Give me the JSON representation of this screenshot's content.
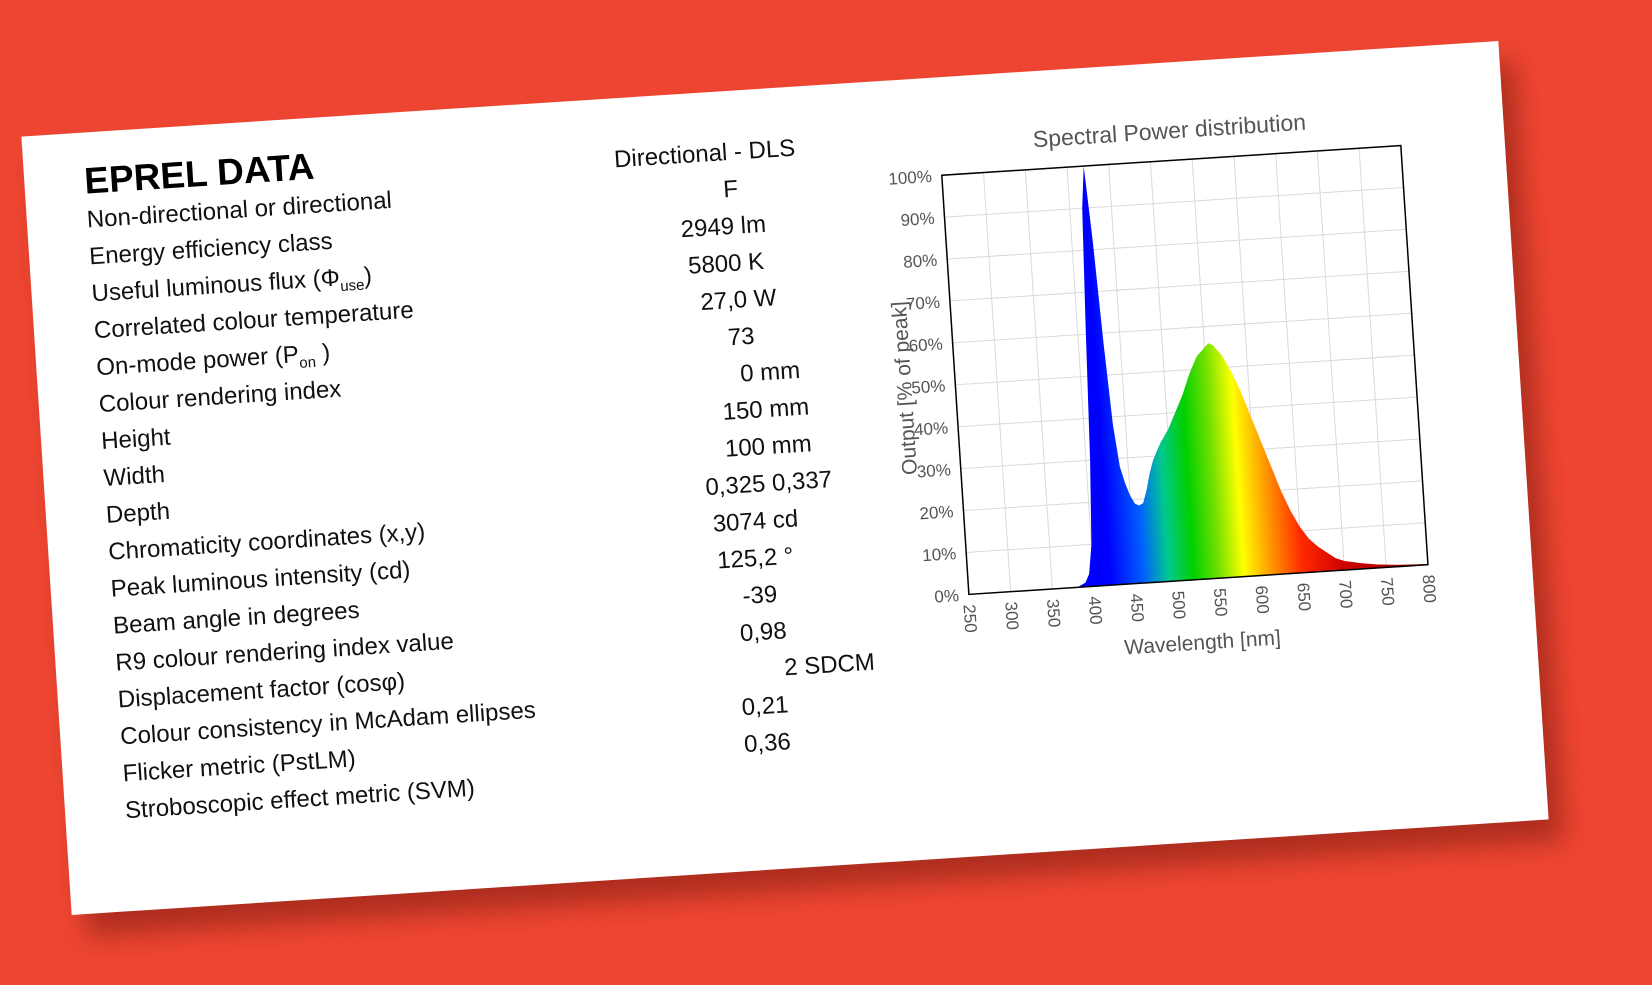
{
  "panel": {
    "title": "EPREL DATA",
    "rows": [
      {
        "label": "Non-directional or directional",
        "value": "Directional - DLS"
      },
      {
        "label": "Energy efficiency class",
        "value": "F"
      },
      {
        "label": "Useful luminous flux (Φ",
        "label_sub": "use",
        "label_after": ")",
        "value": "2949 lm"
      },
      {
        "label": "Correlated colour temperature",
        "value": "5800 K"
      },
      {
        "label": "On-mode power (P",
        "label_sub": "on",
        "label_after": " )",
        "value": "27,0 W"
      },
      {
        "label": "Colour rendering index",
        "value": "73"
      },
      {
        "label": "Height",
        "value": "0 mm"
      },
      {
        "label": "Width",
        "value": "150 mm"
      },
      {
        "label": "Depth",
        "value": "100 mm"
      },
      {
        "label": "Chromaticity coordinates (x,y)",
        "value": "0,325 0,337"
      },
      {
        "label": "Peak luminous intensity (cd)",
        "value": "3074 cd"
      },
      {
        "label": "Beam angle in degrees",
        "value": "125,2 °"
      },
      {
        "label": "R9 colour rendering index value",
        "value": "-39"
      },
      {
        "label": "Displacement factor (cosφ)",
        "value": "0,98"
      },
      {
        "label": "Colour consistency in McAdam ellipses",
        "value": "2 SDCM"
      },
      {
        "label": "Flicker metric (PstLM)",
        "value": "0,21"
      },
      {
        "label": "Stroboscopic effect metric (SVM)",
        "value": "0,36"
      }
    ]
  },
  "colors": {
    "background": "#ee4632",
    "card": "#ffffff",
    "grid": "#d9d9d9"
  },
  "chart_data": {
    "type": "area",
    "title": "Spectral Power distribution",
    "xlabel": "Wavelength [nm]",
    "ylabel": "Output [% of peak]",
    "xlim": [
      250,
      800
    ],
    "ylim": [
      0,
      100
    ],
    "xticks": [
      250,
      300,
      350,
      400,
      450,
      500,
      550,
      600,
      650,
      700,
      750,
      800
    ],
    "yticks": [
      0,
      10,
      20,
      30,
      40,
      50,
      60,
      70,
      80,
      90,
      100
    ],
    "ytick_suffix": "%",
    "grid": true,
    "fill": "spectral rainbow (wavelength colour)",
    "series": [
      {
        "x": [
          380,
          390,
          395,
          400,
          405,
          410,
          415,
          420,
          425,
          430,
          435,
          440,
          445,
          450,
          455,
          460,
          465,
          470,
          475,
          480,
          485,
          490,
          500,
          510,
          520,
          530,
          540,
          550,
          555,
          560,
          570,
          580,
          590,
          600,
          610,
          620,
          630,
          640,
          650,
          660,
          670,
          680,
          690,
          700,
          720,
          740,
          760,
          780,
          800
        ],
        "y": [
          0,
          1,
          3,
          10,
          30,
          62,
          90,
          100,
          82,
          58,
          38,
          28,
          24,
          21,
          19,
          18.5,
          19,
          22,
          26,
          29,
          31,
          33,
          36,
          40,
          44,
          49,
          53,
          55,
          56,
          55.5,
          53,
          49,
          44,
          38,
          32,
          26,
          20,
          15,
          11,
          8,
          6,
          4.5,
          3,
          2.2,
          1.4,
          0.8,
          0.5,
          0.3,
          0.2
        ]
      }
    ]
  }
}
